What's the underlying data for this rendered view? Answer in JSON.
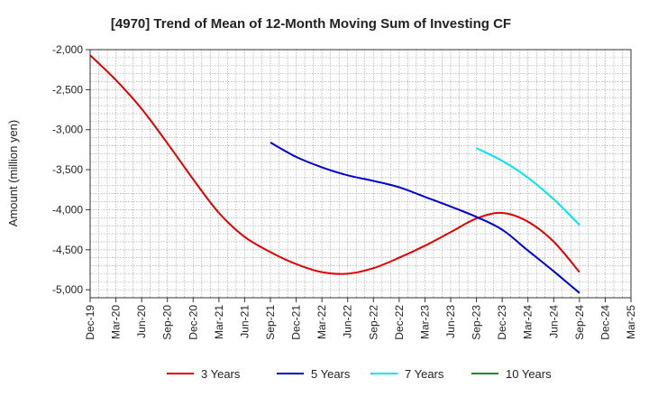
{
  "chart_data": {
    "type": "line",
    "title": "[4970]  Trend of Mean of 12-Month Moving Sum of Investing CF",
    "xlabel": "",
    "ylabel": "Amount (million yen)",
    "ylim": [
      -5100,
      -2000
    ],
    "yticks": [
      -2000,
      -2500,
      -3000,
      -3500,
      -4000,
      -4500,
      -5000
    ],
    "ytick_labels": [
      "-2,000",
      "-2,500",
      "-3,000",
      "-3,500",
      "-4,000",
      "-4,500",
      "-5,000"
    ],
    "xlim": [
      0,
      63
    ],
    "xtick_labels": [
      "Dec-19",
      "Mar-20",
      "Jun-20",
      "Sep-20",
      "Dec-20",
      "Mar-21",
      "Jun-21",
      "Sep-21",
      "Dec-21",
      "Mar-22",
      "Jun-22",
      "Sep-22",
      "Dec-22",
      "Mar-23",
      "Jun-23",
      "Sep-23",
      "Dec-23",
      "Mar-24",
      "Jun-24",
      "Sep-24",
      "Dec-24",
      "Mar-25"
    ],
    "grid": true,
    "legend_position": "bottom",
    "series": [
      {
        "name": "3 Years",
        "color": "#e00000",
        "x": [
          0,
          3,
          6,
          9,
          12,
          15,
          18,
          21,
          24,
          27,
          30,
          33,
          36,
          39,
          42,
          45,
          48,
          51,
          54,
          57
        ],
        "values": [
          -2070,
          -2380,
          -2740,
          -3170,
          -3620,
          -4040,
          -4340,
          -4530,
          -4680,
          -4780,
          -4800,
          -4730,
          -4600,
          -4450,
          -4280,
          -4110,
          -4040,
          -4150,
          -4400,
          -4780
        ]
      },
      {
        "name": "5 Years",
        "color": "#0000cc",
        "x": [
          21,
          24,
          27,
          30,
          33,
          36,
          39,
          42,
          45,
          48,
          51,
          54,
          57
        ],
        "values": [
          -3160,
          -3340,
          -3470,
          -3570,
          -3640,
          -3720,
          -3840,
          -3960,
          -4090,
          -4250,
          -4510,
          -4770,
          -5040
        ]
      },
      {
        "name": "7 Years",
        "color": "#00e5ee",
        "x": [
          45,
          48,
          51,
          54,
          57
        ],
        "values": [
          -3230,
          -3390,
          -3600,
          -3870,
          -4190
        ]
      },
      {
        "name": "10 Years",
        "color": "#228b22",
        "x": [],
        "values": []
      }
    ]
  }
}
